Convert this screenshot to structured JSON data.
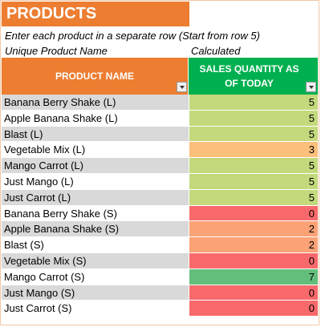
{
  "title": "PRODUCTS",
  "instruction": "Enter each product in a separate row (Start from row 5)",
  "subheaders": {
    "name": "Unique Product Name",
    "qty": "Calculated"
  },
  "columns": {
    "name": "PRODUCT NAME",
    "qty": "SALES QUANTITY AS OF TODAY"
  },
  "colors": {
    "title_bg": "#ed7d31",
    "header_name_bg": "#ed7d31",
    "header_qty_bg": "#00b050",
    "scale_low": "#f8696b",
    "scale_mid": "#ffeb84",
    "scale_high": "#63be7b"
  },
  "rows": [
    {
      "name": "Banana Berry Shake (L)",
      "qty": "5",
      "color": "#c4d97c"
    },
    {
      "name": "Apple Banana Shake (L)",
      "qty": "5",
      "color": "#c4d97c"
    },
    {
      "name": "Blast (L)",
      "qty": "5",
      "color": "#c4d97c"
    },
    {
      "name": "Vegetable Mix (L)",
      "qty": "3",
      "color": "#fdbf7c"
    },
    {
      "name": "Mango Carrot (L)",
      "qty": "5",
      "color": "#c4d97c"
    },
    {
      "name": "Just Mango (L)",
      "qty": "5",
      "color": "#c4d97c"
    },
    {
      "name": "Just Carrot (L)",
      "qty": "5",
      "color": "#c4d97c"
    },
    {
      "name": "Banana Berry Shake (S)",
      "qty": "0",
      "color": "#f8696b"
    },
    {
      "name": "Apple Banana Shake (S)",
      "qty": "2",
      "color": "#fba276"
    },
    {
      "name": "Blast (S)",
      "qty": "2",
      "color": "#fba276"
    },
    {
      "name": "Vegetable Mix (S)",
      "qty": "0",
      "color": "#f8696b"
    },
    {
      "name": "Mango Carrot (S)",
      "qty": "7",
      "color": "#63be7b"
    },
    {
      "name": "Just Mango (S)",
      "qty": "0",
      "color": "#f8696b"
    },
    {
      "name": "Just Carrot (S)",
      "qty": "0",
      "color": "#f8696b"
    }
  ]
}
